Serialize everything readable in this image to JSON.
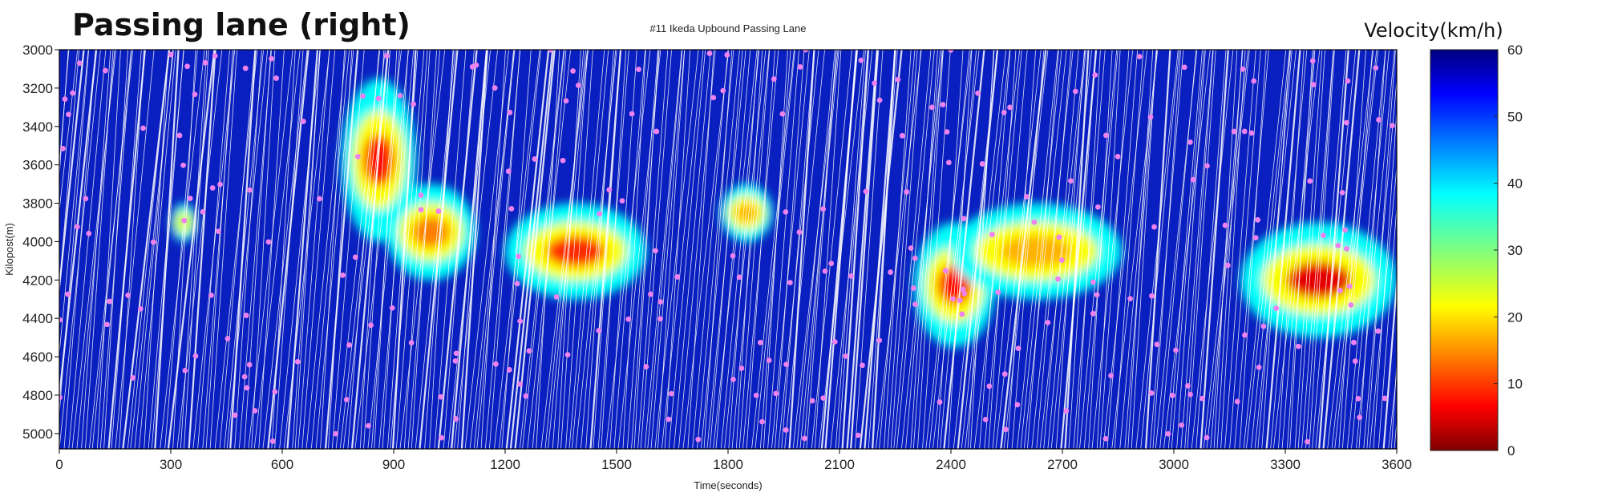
{
  "chart_data": {
    "type": "heatmap",
    "panel_label": "Passing lane (right)",
    "title": "#11 Ikeda Upbound Passing Lane",
    "xlabel": "Time(seconds)",
    "ylabel": "Kilopost(m)",
    "xlim": [
      0,
      3600
    ],
    "ylim": [
      3000,
      5080
    ],
    "y_inverted": true,
    "x_ticks": [
      "0",
      "300",
      "600",
      "900",
      "1200",
      "1500",
      "1800",
      "2100",
      "2400",
      "2700",
      "3000",
      "3300",
      "3600"
    ],
    "y_ticks": [
      "3000",
      "3200",
      "3400",
      "3600",
      "3800",
      "4000",
      "4200",
      "4400",
      "4600",
      "4800",
      "5000"
    ],
    "colorbar": {
      "label": "Velocity(km/h)",
      "range": [
        0,
        60
      ],
      "ticks": [
        "0",
        "10",
        "20",
        "30",
        "40",
        "50",
        "60"
      ],
      "colormap": "jet"
    },
    "background_speed_kmh": 58,
    "congestion_events": [
      {
        "t_start": 760,
        "t_end": 960,
        "km_top": 3150,
        "km_bottom": 4000,
        "min_speed_kmh": 8
      },
      {
        "t_start": 880,
        "t_end": 1120,
        "km_top": 3700,
        "km_bottom": 4200,
        "min_speed_kmh": 15
      },
      {
        "t_start": 1200,
        "t_end": 1580,
        "km_top": 3800,
        "km_bottom": 4300,
        "min_speed_kmh": 10
      },
      {
        "t_start": 300,
        "t_end": 370,
        "km_top": 3800,
        "km_bottom": 4000,
        "min_speed_kmh": 28
      },
      {
        "t_start": 1780,
        "t_end": 1920,
        "km_top": 3700,
        "km_bottom": 4000,
        "min_speed_kmh": 18
      },
      {
        "t_start": 2300,
        "t_end": 2520,
        "km_top": 3900,
        "km_bottom": 4550,
        "min_speed_kmh": 8
      },
      {
        "t_start": 2400,
        "t_end": 2860,
        "km_top": 3800,
        "km_bottom": 4300,
        "min_speed_kmh": 18
      },
      {
        "t_start": 3180,
        "t_end": 3600,
        "km_top": 3900,
        "km_bottom": 4500,
        "min_speed_kmh": 6
      }
    ],
    "colors": {
      "trajectory_gap": "#ffffff",
      "lane_change_marker": "#ee82ee",
      "frame": "#000000"
    }
  }
}
